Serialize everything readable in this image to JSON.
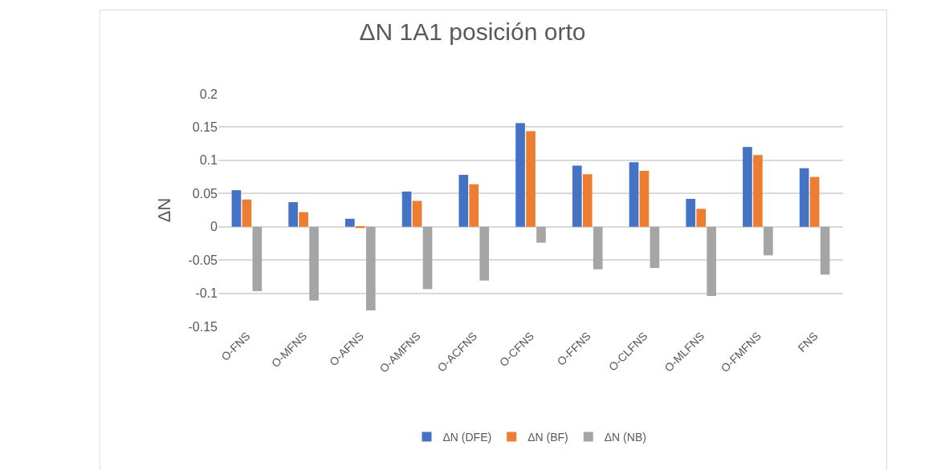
{
  "chart_data": {
    "type": "bar",
    "title": "ΔN 1A1 posición orto",
    "ylabel": "ΔN",
    "categories": [
      "O-FNS",
      "O-MFNS",
      "O-AFNS",
      "O-AMFNS",
      "O-ACFNS",
      "O-CFNS",
      "O-FFNS",
      "O-CLFNS",
      "O-MLFNS",
      "O-FMFNS",
      "FNS"
    ],
    "series": [
      {
        "name": "ΔN (DFE)",
        "color": "#4472c4",
        "values": [
          0.055,
          0.037,
          0.012,
          0.053,
          0.078,
          0.156,
          0.092,
          0.097,
          0.042,
          0.12,
          0.088
        ]
      },
      {
        "name": "ΔN (BF)",
        "color": "#ed7d31",
        "values": [
          0.041,
          0.022,
          -0.002,
          0.039,
          0.064,
          0.144,
          0.079,
          0.084,
          0.027,
          0.108,
          0.075
        ]
      },
      {
        "name": "ΔN (NB)",
        "color": "#a5a5a5",
        "values": [
          -0.097,
          -0.111,
          -0.126,
          -0.094,
          -0.081,
          -0.024,
          -0.064,
          -0.062,
          -0.104,
          -0.043,
          -0.072
        ]
      }
    ],
    "ylim": [
      -0.15,
      0.2
    ],
    "yticks": [
      -0.15,
      -0.1,
      -0.05,
      0,
      0.05,
      0.1,
      0.15,
      0.2
    ],
    "grid": "y",
    "legend": "bottom"
  }
}
